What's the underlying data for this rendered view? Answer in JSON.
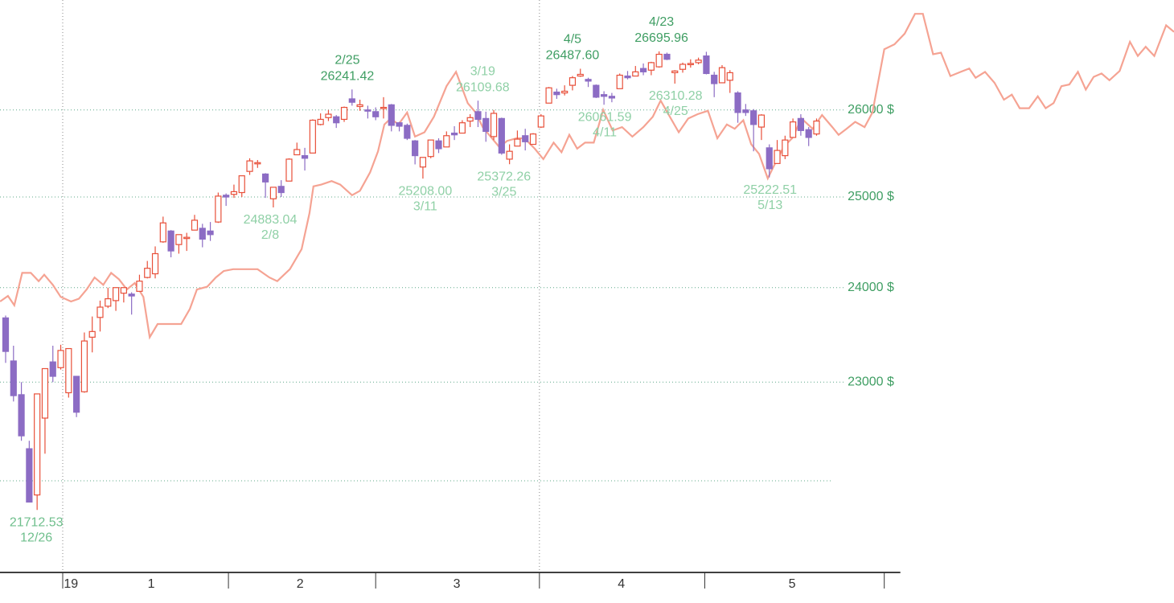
{
  "chart_data": {
    "type": "candlestick",
    "log_scale": true,
    "up_color": "#e8503a",
    "down_color": "#8c6cc4",
    "label_color": "#3f9e63",
    "xlim": [
      -0.715,
      148.4
    ],
    "ylim": [
      21110,
      27320
    ],
    "yticks": [
      {
        "value": 23000,
        "label": "23000 $"
      },
      {
        "value": 24000,
        "label": "24000 $"
      },
      {
        "value": 25000,
        "label": "25000 $"
      },
      {
        "value": 26000,
        "label": "26000 $"
      }
    ],
    "minor_gridlines": [
      22000
    ],
    "xgrid": [
      7.25,
      67.8
    ],
    "xtick_marks": [
      7.25,
      28.3,
      47.0,
      67.8,
      88.8,
      111.6
    ],
    "xticks": [
      {
        "value": 8.3,
        "label": "19"
      },
      {
        "value": 18.5,
        "label": "1"
      },
      {
        "value": 37.4,
        "label": "2"
      },
      {
        "value": 57.3,
        "label": "3"
      },
      {
        "value": 78.2,
        "label": "4"
      },
      {
        "value": 99.9,
        "label": "5"
      }
    ],
    "x": [
      0,
      1,
      2,
      3,
      4,
      5,
      6,
      7,
      8,
      9,
      10,
      11,
      12,
      13,
      14,
      15,
      16,
      17,
      18,
      19,
      20,
      21,
      22,
      23,
      24,
      25,
      26,
      27,
      28,
      29,
      30,
      31,
      32,
      33,
      34,
      35,
      36,
      37,
      38,
      39,
      40,
      41,
      42,
      43,
      44,
      45,
      46,
      47,
      48,
      49,
      50,
      51,
      52,
      53,
      54,
      55,
      56,
      57,
      58,
      59,
      60,
      61,
      62,
      63,
      64,
      65,
      66,
      67,
      68,
      69,
      70,
      71,
      72,
      73,
      74,
      75,
      76,
      77,
      78,
      79,
      80,
      81,
      82,
      83,
      84,
      85,
      86,
      87,
      88,
      89,
      90,
      91,
      92,
      93,
      94,
      95,
      96,
      97,
      98,
      99,
      100,
      101,
      102,
      103
    ],
    "open": [
      23675,
      23220,
      22870,
      22320,
      21860,
      22630,
      23210,
      23150,
      22890,
      23060,
      22900,
      23470,
      23680,
      23800,
      23860,
      23940,
      23930,
      23960,
      24110,
      24150,
      24500,
      24620,
      24470,
      24550,
      24630,
      24650,
      24620,
      24720,
      25020,
      25030,
      25050,
      25290,
      25390,
      25260,
      24980,
      25120,
      25180,
      25480,
      25470,
      25500,
      25830,
      25910,
      25920,
      25890,
      26130,
      26040,
      26000,
      25980,
      26020,
      26060,
      25850,
      25820,
      25640,
      25340,
      25460,
      25640,
      25570,
      25730,
      25730,
      25870,
      25980,
      25900,
      25690,
      25900,
      25430,
      25580,
      25700,
      25600,
      25800,
      26080,
      26210,
      26200,
      26290,
      26400,
      26360,
      26290,
      26180,
      26160,
      26250,
      26400,
      26400,
      26490,
      26470,
      26510,
      26660,
      26440,
      26480,
      26540,
      26560,
      26640,
      26410,
      26320,
      26350,
      26200,
      26000,
      25990,
      25800,
      25560,
      25380,
      25470,
      25680,
      25900,
      25770,
      25720
    ],
    "high": [
      23700,
      23380,
      23000,
      22400,
      22880,
      23140,
      23380,
      23390,
      23350,
      23060,
      23520,
      23690,
      23860,
      24000,
      24000,
      24000,
      23950,
      24140,
      24290,
      24450,
      24780,
      24630,
      24580,
      24600,
      24800,
      24700,
      24720,
      25050,
      25040,
      25140,
      25240,
      25440,
      25420,
      25270,
      25110,
      25190,
      25440,
      25620,
      25560,
      25890,
      25960,
      26000,
      25940,
      26040,
      26241,
      26120,
      26050,
      26030,
      26150,
      26070,
      25860,
      25840,
      25650,
      25450,
      25650,
      25670,
      25750,
      25810,
      25880,
      25950,
      26109,
      25980,
      26000,
      25910,
      25600,
      25760,
      25780,
      25730,
      25950,
      26270,
      26250,
      26290,
      26400,
      26487,
      26380,
      26300,
      26220,
      26200,
      26430,
      26460,
      26520,
      26550,
      26570,
      26695,
      26680,
      26470,
      26560,
      26600,
      26620,
      26690,
      26450,
      26530,
      26470,
      26220,
      26070,
      26010,
      25950,
      25600,
      25650,
      25700,
      25900,
      25950,
      25800,
      25900
    ],
    "low": [
      23200,
      22800,
      22400,
      21790,
      21713,
      22270,
      23000,
      23130,
      22840,
      22640,
      22890,
      23310,
      23530,
      23780,
      23750,
      23840,
      23710,
      23960,
      24100,
      24100,
      24490,
      24330,
      24370,
      24400,
      24630,
      24440,
      24510,
      24710,
      24900,
      24990,
      25000,
      25250,
      25330,
      24990,
      24883,
      25000,
      25180,
      25480,
      25300,
      25500,
      25820,
      25870,
      25790,
      25860,
      26050,
      25990,
      25900,
      25880,
      25900,
      25750,
      25750,
      25650,
      25370,
      25208,
      25440,
      25500,
      25570,
      25650,
      25730,
      25800,
      25800,
      25630,
      25650,
      25480,
      25372,
      25580,
      25530,
      25600,
      25790,
      26080,
      26130,
      26170,
      26230,
      26390,
      26270,
      26140,
      26061,
      26090,
      26250,
      26360,
      26400,
      26410,
      26410,
      26500,
      26590,
      26310,
      26440,
      26500,
      26540,
      26420,
      26150,
      26320,
      26200,
      25850,
      25930,
      25520,
      25650,
      25222,
      25380,
      25430,
      25680,
      25700,
      25580,
      25700
    ],
    "close": [
      23320,
      22860,
      22450,
      21790,
      22878,
      23140,
      23060,
      23330,
      23350,
      22690,
      23430,
      23530,
      23790,
      23880,
      24000,
      24000,
      23910,
      24070,
      24210,
      24370,
      24710,
      24400,
      24580,
      24550,
      24740,
      24530,
      24580,
      25010,
      25000,
      25060,
      25240,
      25410,
      25390,
      25170,
      25110,
      25050,
      25430,
      25540,
      25440,
      25880,
      25890,
      25950,
      25850,
      26030,
      26090,
      26060,
      25990,
      25920,
      26030,
      25820,
      25810,
      25670,
      25470,
      25450,
      25650,
      25550,
      25700,
      25710,
      25850,
      25910,
      25890,
      25750,
      25960,
      25500,
      25520,
      25660,
      25630,
      25720,
      25930,
      26260,
      26180,
      26220,
      26380,
      26420,
      26340,
      26150,
      26160,
      26140,
      26410,
      26380,
      26450,
      26450,
      26560,
      26660,
      26600,
      26460,
      26540,
      26550,
      26590,
      26430,
      26310,
      26500,
      26440,
      25970,
      25970,
      25830,
      25940,
      25320,
      25530,
      25650,
      25860,
      25760,
      25680,
      25870
    ],
    "line": {
      "color": "#f5a393",
      "x": [
        -0.7,
        0.3,
        1.1,
        2.1,
        3.2,
        4.2,
        4.9,
        6.0,
        7.0,
        8.3,
        9.3,
        10.3,
        11.3,
        12.4,
        13.4,
        14.4,
        15.4,
        16.4,
        17.5,
        18.3,
        19.3,
        20.3,
        22.3,
        23.4,
        24.3,
        25.6,
        26.7,
        27.7,
        28.9,
        32.0,
        33.5,
        34.5,
        36.1,
        37.6,
        38.6,
        39.1,
        40.1,
        41.4,
        42.5,
        44.0,
        45.0,
        46.3,
        47.3,
        48.1,
        48.9,
        49.9,
        51.0,
        52.0,
        53.2,
        54.4,
        56.0,
        57.2,
        58.7,
        59.7,
        60.6,
        61.6,
        62.7,
        63.7,
        64.9,
        65.9,
        67.2,
        68.3,
        69.6,
        70.6,
        71.6,
        72.6,
        73.6,
        74.7,
        75.9,
        77.1,
        78.3,
        79.6,
        81.0,
        82.2,
        83.2,
        84.5,
        85.5,
        86.7,
        87.9,
        89.2,
        90.4,
        91.6,
        92.6,
        93.7,
        94.7,
        95.7,
        96.8,
        97.9,
        98.9,
        99.9,
        101.1,
        102.5,
        103.7,
        105.0,
        105.8,
        106.8,
        107.9,
        109.1,
        110.1,
        111.6,
        112.9,
        114.2,
        115.5,
        116.5,
        117.8,
        118.8,
        120.0,
        121.3,
        122.4,
        123.2,
        124.4,
        125.6,
        126.8,
        127.8,
        128.8,
        130.0,
        131.1,
        132.1,
        133.1,
        134.1,
        135.1,
        136.2,
        137.2,
        138.2,
        139.2,
        140.2,
        141.5,
        142.8,
        143.8,
        144.8,
        145.9,
        147.4,
        148.4
      ],
      "values": [
        23850,
        23910,
        23810,
        24160,
        24160,
        24070,
        24140,
        24030,
        23900,
        23850,
        23880,
        23980,
        24110,
        24030,
        24160,
        24090,
        23980,
        24050,
        23900,
        23470,
        23610,
        23610,
        23610,
        23770,
        23980,
        24010,
        24110,
        24180,
        24200,
        24200,
        24110,
        24070,
        24200,
        24420,
        24820,
        25120,
        25140,
        25180,
        25140,
        25020,
        25070,
        25280,
        25520,
        25830,
        25900,
        25830,
        25970,
        25690,
        25740,
        25920,
        26280,
        26450,
        26080,
        25970,
        25800,
        25690,
        25570,
        25640,
        25670,
        25670,
        25550,
        25430,
        25620,
        25510,
        25710,
        25550,
        25620,
        25620,
        26000,
        25760,
        25800,
        25690,
        25800,
        25920,
        26110,
        25900,
        25740,
        25900,
        25950,
        25990,
        25670,
        25830,
        25780,
        25880,
        25600,
        25490,
        25210,
        25410,
        25580,
        25670,
        25900,
        25780,
        25940,
        25800,
        25710,
        25780,
        25860,
        25800,
        25970,
        26720,
        26780,
        26910,
        27150,
        27150,
        26660,
        26680,
        26400,
        26450,
        26490,
        26380,
        26450,
        26320,
        26120,
        26180,
        26020,
        26020,
        26160,
        26020,
        26080,
        26280,
        26300,
        26450,
        26240,
        26390,
        26430,
        26350,
        26460,
        26810,
        26640,
        26750,
        26640,
        27010,
        26930
      ]
    },
    "annotations": [
      {
        "x": 3.9,
        "date": "12/26",
        "value": 21712.53,
        "placement": "below",
        "color": "#6fbf8c"
      },
      {
        "x": 33.6,
        "date": "2/8",
        "value": 24883.04,
        "placement": "below",
        "color": "#8fd0a6"
      },
      {
        "x": 43.4,
        "date": "2/25",
        "value": 26241.42,
        "placement": "above",
        "color": "#3f9e63"
      },
      {
        "x": 53.3,
        "date": "3/11",
        "value": 25208,
        "value_label": "25208.00",
        "placement": "below",
        "color": "#8fd0a6"
      },
      {
        "x": 60.6,
        "date": "3/19",
        "value": 26109.68,
        "placement": "above",
        "color": "#8fd0a6"
      },
      {
        "x": 63.3,
        "date": "3/25",
        "value": 25372.26,
        "placement": "below",
        "color": "#8fd0a6"
      },
      {
        "x": 72.0,
        "date": "4/5",
        "value": 26487.6,
        "value_label": "26487.60",
        "placement": "above",
        "color": "#3f9e63"
      },
      {
        "x": 76.1,
        "date": "4/11",
        "value": 26061.59,
        "placement": "below",
        "color": "#8fd0a6"
      },
      {
        "x": 83.3,
        "date": "4/23",
        "value": 26695.96,
        "placement": "above",
        "color": "#3f9e63"
      },
      {
        "x": 85.1,
        "date": "4/25",
        "value": 26310.28,
        "placement": "below",
        "color": "#8fd0a6"
      },
      {
        "x": 97.1,
        "date": "5/13",
        "value": 25222.51,
        "placement": "below",
        "color": "#8fd0a6"
      }
    ]
  }
}
